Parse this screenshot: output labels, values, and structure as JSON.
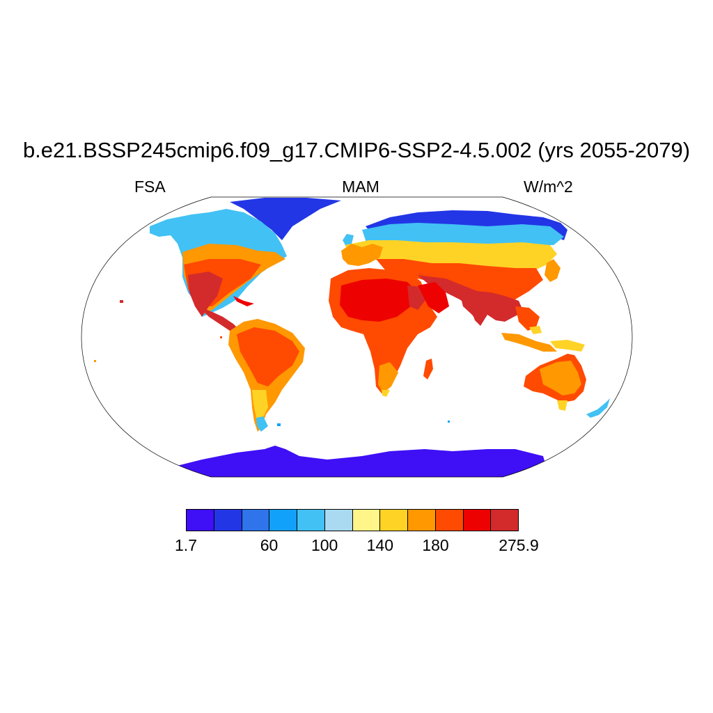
{
  "title": "b.e21.BSSP245cmip6.f09_g17.CMIP6-SSP2-4.5.002 (yrs 2055-2079)",
  "left_label": "FSA",
  "center_label": "MAM",
  "right_label": "W/m^2",
  "colorbar": {
    "colors": [
      "#3f0ff5",
      "#2236e6",
      "#2f74ea",
      "#12a1fa",
      "#42c1f4",
      "#a9daf1",
      "#fff588",
      "#ffd326",
      "#ff9801",
      "#ff4a01",
      "#ee0201",
      "#d32a2c"
    ],
    "labels": [
      {
        "text": "1.7",
        "box": 0
      },
      {
        "text": "60",
        "box": 3
      },
      {
        "text": "100",
        "box": 5
      },
      {
        "text": "140",
        "box": 7
      },
      {
        "text": "180",
        "box": 9
      },
      {
        "text": "275.9",
        "box": 12
      }
    ]
  }
}
